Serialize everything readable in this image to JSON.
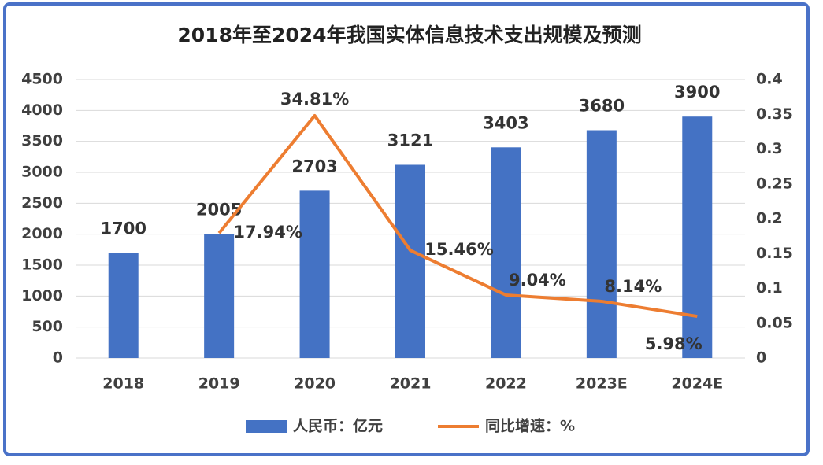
{
  "chart_data": {
    "type": "bar_line",
    "title": "2018年至2024年我国实体信息技术支出规模及预测",
    "categories": [
      "2018",
      "2019",
      "2020",
      "2021",
      "2022",
      "2023E",
      "2024E"
    ],
    "series": [
      {
        "name": "人民币：亿元",
        "color": "#4472c4",
        "type": "bar",
        "values": [
          1700,
          2005,
          2703,
          3121,
          3403,
          3680,
          3900
        ]
      },
      {
        "name": "同比增速：%",
        "color": "#ed7d31",
        "type": "line",
        "axis": "y2",
        "values": [
          null,
          0.1794,
          0.3481,
          0.1546,
          0.0904,
          0.0814,
          0.0598
        ],
        "value_labels": [
          null,
          "17.94%",
          "34.81%",
          "15.46%",
          "9.04%",
          "8.14%",
          "5.98%"
        ]
      }
    ],
    "ylim": [
      0,
      4500
    ],
    "yticks": [
      0,
      500,
      1000,
      1500,
      2000,
      2500,
      3000,
      3500,
      4000,
      4500
    ],
    "y2lim": [
      0,
      0.4
    ],
    "y2ticks": [
      0,
      0.05,
      0.1,
      0.15,
      0.2,
      0.25,
      0.3,
      0.35,
      0.4
    ],
    "grid": true,
    "legend": "bottom"
  }
}
